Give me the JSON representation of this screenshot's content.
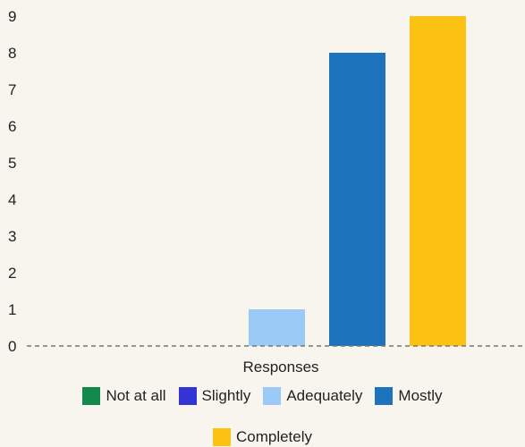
{
  "chart_data": {
    "type": "bar",
    "categories": [
      "Responses"
    ],
    "xlabel": "Responses",
    "ylabel": "",
    "ylim": [
      0,
      9
    ],
    "yticks": [
      0,
      1,
      2,
      3,
      4,
      5,
      6,
      7,
      8,
      9
    ],
    "grid": false,
    "baseline_style": "dashed",
    "legend_position": "bottom",
    "series": [
      {
        "name": "Not at all",
        "values": [
          0
        ],
        "color": "#138a4b"
      },
      {
        "name": "Slightly",
        "values": [
          0
        ],
        "color": "#3333d6"
      },
      {
        "name": "Adequately",
        "values": [
          1
        ],
        "color": "#9ccaf6"
      },
      {
        "name": "Mostly",
        "values": [
          8
        ],
        "color": "#1d74bd"
      },
      {
        "name": "Completely",
        "values": [
          9
        ],
        "color": "#fbc214"
      }
    ]
  },
  "legend": {
    "items": [
      {
        "label": "Not at all",
        "color": "#138a4b"
      },
      {
        "label": "Slightly",
        "color": "#3333d6"
      },
      {
        "label": "Adequately",
        "color": "#9ccaf6"
      },
      {
        "label": "Mostly",
        "color": "#1d74bd"
      },
      {
        "label": "Completely",
        "color": "#fbc214"
      }
    ]
  }
}
